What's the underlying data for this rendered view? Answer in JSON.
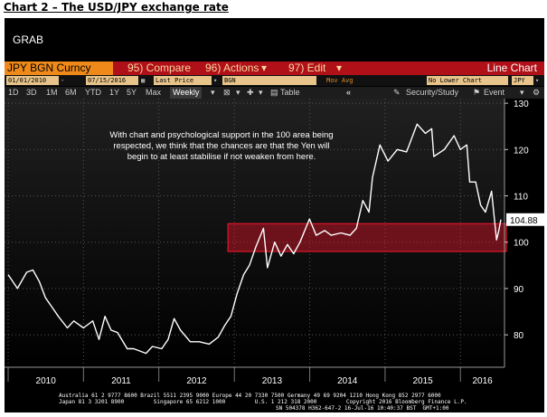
{
  "caption": "Chart 2 – The USD/JPY exchange rate",
  "grab_label": "GRAB",
  "toolbar": {
    "security": "JPY BGN Curncy",
    "compare": "95) Compare",
    "actions": "96) Actions",
    "edit": "97) Edit",
    "chart_type": "Line Chart"
  },
  "fields": {
    "start_date": "01/01/2010",
    "end_date": "07/15/2016",
    "price_type": "Last Price",
    "ticker": "BGN",
    "mov_avg": "Mov Avg",
    "lower_chart": "No Lower Chart",
    "currency": "JPY"
  },
  "periods": [
    "1D",
    "3D",
    "1M",
    "6M",
    "YTD",
    "1Y",
    "5Y",
    "Max"
  ],
  "frequency": "Weekly",
  "table_label": "Table",
  "security_study_label": "Security/Study",
  "event_label": "Event",
  "annotation": "With chart and psychological support in the 100 area being respected, we think that the chances are that the Yen will begin to at least stabilise if not weaken from here.",
  "last_value_label": "104.88",
  "footer": {
    "line1": "Australia 61 2 9777 8600 Brazil 5511 2395 9000 Europe 44 20 7330 7500 Germany 49 69 9204 1210 Hong Kong 852 2977 6000",
    "line2": "Japan 81 3 3201 8900         Singapore 65 6212 1000         U.S. 1 212 318 2000         Copyright 2016 Bloomberg Finance L.P.",
    "line3": "SN 504378 H362-647-2 16-Jul-16 10:40:37 BST  GMT+1:00"
  },
  "colors": {
    "line": "#ffffff",
    "highlight": "#e0162a",
    "toolbar_red": "#b01018",
    "toolbar_orange": "#ef8a1a"
  },
  "chart_data": {
    "type": "line",
    "title": "",
    "xlabel": "",
    "ylabel": "",
    "ylim": [
      73,
      131
    ],
    "y_ticks": [
      80,
      90,
      100,
      110,
      120,
      130
    ],
    "x_tick_labels": [
      "2010",
      "2011",
      "2012",
      "2013",
      "2014",
      "2015",
      "2016"
    ],
    "x_range": [
      "2010-01-01",
      "2016-07-15"
    ],
    "highlight_band": [
      98,
      104
    ],
    "last_value": 104.88,
    "series": [
      {
        "values": [
          [
            "2010-01-01",
            93
          ],
          [
            "2010-02-15",
            90
          ],
          [
            "2010-04-01",
            93.5
          ],
          [
            "2010-05-01",
            94
          ],
          [
            "2010-06-01",
            91.5
          ],
          [
            "2010-07-01",
            88
          ],
          [
            "2010-08-01",
            86
          ],
          [
            "2010-09-01",
            84
          ],
          [
            "2010-10-15",
            81.5
          ],
          [
            "2010-11-15",
            83
          ],
          [
            "2011-01-01",
            81.5
          ],
          [
            "2011-02-15",
            83
          ],
          [
            "2011-03-17",
            79
          ],
          [
            "2011-04-15",
            84
          ],
          [
            "2011-05-15",
            81
          ],
          [
            "2011-06-15",
            80.5
          ],
          [
            "2011-08-01",
            77
          ],
          [
            "2011-09-01",
            77
          ],
          [
            "2011-10-31",
            76
          ],
          [
            "2011-12-01",
            77.5
          ],
          [
            "2012-01-15",
            77
          ],
          [
            "2012-02-15",
            79
          ],
          [
            "2012-03-15",
            83.5
          ],
          [
            "2012-04-15",
            81
          ],
          [
            "2012-06-01",
            78.5
          ],
          [
            "2012-07-15",
            78.5
          ],
          [
            "2012-09-01",
            78
          ],
          [
            "2012-10-15",
            79.5
          ],
          [
            "2012-11-15",
            82
          ],
          [
            "2012-12-15",
            84
          ],
          [
            "2013-01-15",
            89
          ],
          [
            "2013-02-15",
            93
          ],
          [
            "2013-03-15",
            95
          ],
          [
            "2013-04-15",
            99
          ],
          [
            "2013-05-22",
            103
          ],
          [
            "2013-06-10",
            94.5
          ],
          [
            "2013-07-15",
            100
          ],
          [
            "2013-08-15",
            97
          ],
          [
            "2013-09-15",
            99.5
          ],
          [
            "2013-10-15",
            97.5
          ],
          [
            "2013-11-15",
            100
          ],
          [
            "2013-12-31",
            105
          ],
          [
            "2014-02-01",
            101.5
          ],
          [
            "2014-03-15",
            102.5
          ],
          [
            "2014-04-15",
            101.5
          ],
          [
            "2014-06-01",
            102
          ],
          [
            "2014-07-15",
            101.5
          ],
          [
            "2014-08-15",
            103
          ],
          [
            "2014-09-15",
            109
          ],
          [
            "2014-10-15",
            106.5
          ],
          [
            "2014-11-01",
            114
          ],
          [
            "2014-12-07",
            121
          ],
          [
            "2015-01-15",
            117.5
          ],
          [
            "2015-03-01",
            120
          ],
          [
            "2015-04-15",
            119.5
          ],
          [
            "2015-06-05",
            125.5
          ],
          [
            "2015-07-15",
            123.5
          ],
          [
            "2015-08-15",
            124.5
          ],
          [
            "2015-08-25",
            118.5
          ],
          [
            "2015-10-15",
            120
          ],
          [
            "2015-12-01",
            123
          ],
          [
            "2016-01-01",
            120
          ],
          [
            "2016-02-01",
            121
          ],
          [
            "2016-02-15",
            113
          ],
          [
            "2016-03-15",
            113
          ],
          [
            "2016-04-08",
            108
          ],
          [
            "2016-05-01",
            106.5
          ],
          [
            "2016-05-31",
            111
          ],
          [
            "2016-06-24",
            100.5
          ],
          [
            "2016-07-05",
            102.5
          ],
          [
            "2016-07-15",
            104.88
          ]
        ]
      }
    ]
  }
}
